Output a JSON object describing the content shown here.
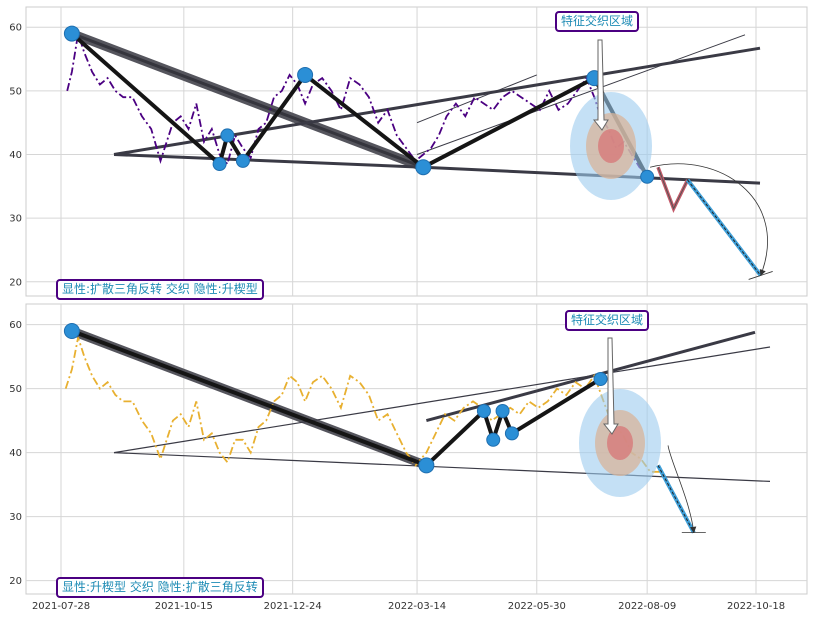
{
  "chart_data": [
    {
      "type": "line",
      "panel": "top",
      "yticks": [
        20,
        30,
        40,
        50,
        60
      ],
      "ylim": [
        18,
        64
      ],
      "grid": true,
      "series": [
        {
          "color": "#4b0082",
          "style": "dash-dot",
          "x": [
            "2021-08-01",
            "2021-08-04",
            "2021-08-08",
            "2021-08-12",
            "2021-08-17",
            "2021-08-22",
            "2021-08-27",
            "2021-09-01",
            "2021-09-06",
            "2021-09-12",
            "2021-09-18",
            "2021-09-24",
            "2021-09-30",
            "2021-10-04",
            "2021-10-08",
            "2021-10-13",
            "2021-10-18",
            "2021-10-23",
            "2021-10-28",
            "2021-11-02",
            "2021-11-07",
            "2021-11-12",
            "2021-11-17",
            "2021-11-22",
            "2021-11-27",
            "2021-12-02",
            "2021-12-07",
            "2021-12-12",
            "2021-12-17",
            "2021-12-22",
            "2021-12-27",
            "2022-01-01",
            "2022-01-06",
            "2022-01-12",
            "2022-01-18",
            "2022-01-24",
            "2022-01-30",
            "2022-02-05",
            "2022-02-11",
            "2022-02-17",
            "2022-02-23",
            "2022-03-01",
            "2022-03-07",
            "2022-03-13",
            "2022-03-18",
            "2022-03-23",
            "2022-03-28",
            "2022-04-02",
            "2022-04-08",
            "2022-04-14",
            "2022-04-20",
            "2022-04-26",
            "2022-05-02",
            "2022-05-08",
            "2022-05-14",
            "2022-05-20",
            "2022-05-26",
            "2022-06-01",
            "2022-06-07",
            "2022-06-13",
            "2022-06-19",
            "2022-06-25",
            "2022-07-01",
            "2022-07-06",
            "2022-07-10",
            "2022-07-15",
            "2022-07-20",
            "2022-07-25",
            "2022-07-30",
            "2022-08-04",
            "2022-08-09",
            "2022-08-14"
          ],
          "y": [
            50,
            53,
            59,
            56,
            53,
            51,
            52,
            50,
            49,
            49,
            46,
            44,
            39,
            42,
            45,
            46,
            44,
            48,
            42,
            44,
            40,
            38.5,
            43,
            41,
            39.5,
            44,
            45,
            49,
            50,
            52.5,
            51,
            48,
            51,
            52,
            50,
            47,
            52,
            51,
            49,
            45,
            47,
            43,
            41,
            39,
            40,
            41,
            43,
            46,
            48,
            46,
            49,
            48,
            47,
            49,
            50,
            49,
            48,
            47,
            50,
            47,
            48,
            50,
            52,
            49,
            46,
            44,
            41,
            42,
            40,
            38,
            37,
            36
          ]
        }
      ],
      "pattern_points": [
        {
          "x": "2021-08-04",
          "y": 59
        },
        {
          "x": "2021-11-07",
          "y": 38.5
        },
        {
          "x": "2021-11-12",
          "y": 43
        },
        {
          "x": "2021-11-22",
          "y": 39
        },
        {
          "x": "2022-01-01",
          "y": 52.5
        },
        {
          "x": "2022-03-18",
          "y": 38
        },
        {
          "x": "2022-07-06",
          "y": 52
        },
        {
          "x": "2022-08-09",
          "y": 36.5
        }
      ],
      "projection": {
        "x": [
          "2022-08-09",
          "2022-08-16",
          "2022-08-26",
          "2022-09-04",
          "2022-10-21"
        ],
        "y": [
          36.5,
          38,
          31.5,
          36,
          21
        ]
      },
      "annotation": "特征交织区域",
      "legend": "显性:扩散三角反转 交织 隐性:升楔型"
    },
    {
      "type": "line",
      "panel": "bottom",
      "yticks": [
        20,
        30,
        40,
        50,
        60
      ],
      "ylim": [
        18,
        64
      ],
      "grid": true,
      "xticks": [
        "2021-07-28",
        "2021-10-15",
        "2021-12-24",
        "2022-03-14",
        "2022-05-30",
        "2022-08-09",
        "2022-10-18"
      ],
      "series": [
        {
          "color": "#e8b030",
          "style": "dash-dot",
          "x": [
            "2021-07-31",
            "2021-08-04",
            "2021-08-08",
            "2021-08-12",
            "2021-08-17",
            "2021-08-22",
            "2021-08-27",
            "2021-09-01",
            "2021-09-06",
            "2021-09-12",
            "2021-09-18",
            "2021-09-24",
            "2021-09-30",
            "2021-10-04",
            "2021-10-08",
            "2021-10-13",
            "2021-10-18",
            "2021-10-23",
            "2021-10-28",
            "2021-11-02",
            "2021-11-07",
            "2021-11-12",
            "2021-11-17",
            "2021-11-22",
            "2021-11-27",
            "2021-12-02",
            "2021-12-07",
            "2021-12-12",
            "2021-12-17",
            "2021-12-22",
            "2021-12-27",
            "2022-01-01",
            "2022-01-06",
            "2022-01-12",
            "2022-01-18",
            "2022-01-24",
            "2022-01-30",
            "2022-02-05",
            "2022-02-11",
            "2022-02-17",
            "2022-02-23",
            "2022-03-01",
            "2022-03-07",
            "2022-03-13",
            "2022-03-20",
            "2022-03-26",
            "2022-04-01",
            "2022-04-07",
            "2022-04-13",
            "2022-04-19",
            "2022-04-25",
            "2022-05-01",
            "2022-05-07",
            "2022-05-13",
            "2022-05-19",
            "2022-05-25",
            "2022-05-31",
            "2022-06-06",
            "2022-06-12",
            "2022-06-18",
            "2022-06-24",
            "2022-06-30",
            "2022-07-06",
            "2022-07-12",
            "2022-07-18",
            "2022-07-24",
            "2022-07-30",
            "2022-08-05",
            "2022-08-11",
            "2022-08-17"
          ],
          "y": [
            50,
            53,
            58,
            55,
            52,
            50,
            51,
            49,
            48,
            48,
            45,
            43,
            39,
            42,
            45,
            46,
            44,
            48,
            42,
            43,
            40,
            38.5,
            42,
            42,
            40,
            44,
            45,
            48,
            49,
            52,
            51,
            48,
            51,
            52,
            50,
            47,
            52,
            51,
            49,
            45,
            46,
            43,
            40,
            38,
            40,
            43,
            46,
            45,
            47,
            48,
            47,
            45,
            46,
            47,
            46,
            48,
            47,
            48,
            50,
            49,
            51,
            50,
            52,
            48,
            44,
            43,
            40,
            39,
            37,
            37
          ]
        }
      ],
      "pattern_points": [
        {
          "x": "2021-08-04",
          "y": 59
        },
        {
          "x": "2022-03-20",
          "y": 38
        },
        {
          "x": "2022-04-26",
          "y": 46.5
        },
        {
          "x": "2022-05-02",
          "y": 42
        },
        {
          "x": "2022-05-08",
          "y": 46.5
        },
        {
          "x": "2022-05-14",
          "y": 43
        },
        {
          "x": "2022-07-10",
          "y": 51.5
        }
      ],
      "projection": {
        "x": [
          "2022-08-16",
          "2022-09-08"
        ],
        "y": [
          38,
          27.5
        ]
      },
      "annotation": "特征交织区域",
      "legend": "显性:升楔型 交织 隐性:扩散三角反转"
    }
  ]
}
